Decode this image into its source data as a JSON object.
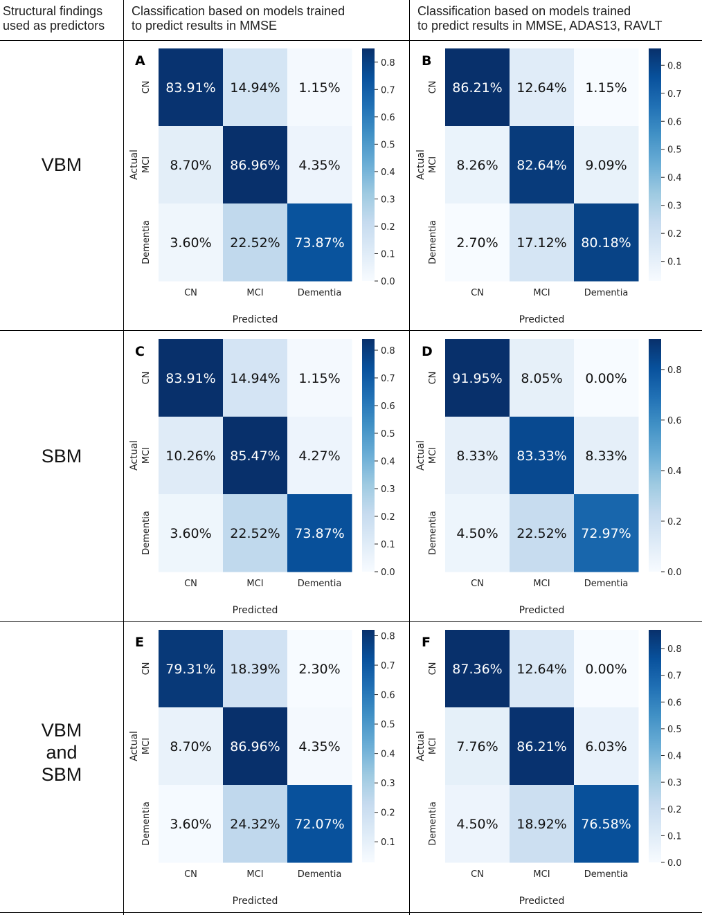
{
  "headers": {
    "col0": [
      "Structural findings",
      "used as predictors"
    ],
    "col1": [
      "Classification based on models trained",
      "to predict results in MMSE"
    ],
    "col2": [
      "Classification based on models trained",
      "to predict results in MMSE, ADAS13, RAVLT"
    ]
  },
  "rows": [
    {
      "label": [
        "VBM"
      ]
    },
    {
      "label": [
        "SBM"
      ]
    },
    {
      "label": [
        "VBM",
        "and",
        "SBM"
      ]
    }
  ],
  "colors": {
    "low": "#f7fbff",
    "high": "#08306b"
  },
  "chart_data": [
    {
      "panel": "A",
      "type": "heatmap",
      "xlabel": "Predicted",
      "ylabel": "Actual",
      "categories": [
        "CN",
        "MCI",
        "Dementia"
      ],
      "values": [
        [
          83.91,
          14.94,
          1.15
        ],
        [
          8.7,
          86.96,
          4.35
        ],
        [
          3.6,
          22.52,
          73.87
        ]
      ],
      "labels": [
        [
          "83.91%",
          "14.94%",
          "1.15%"
        ],
        [
          "8.70%",
          "86.96%",
          "4.35%"
        ],
        [
          "3.60%",
          "22.52%",
          "73.87%"
        ]
      ],
      "colorbar": {
        "min": 0.0,
        "max": 0.85,
        "ticks": [
          "0.8",
          "0.7",
          "0.6",
          "0.5",
          "0.4",
          "0.3",
          "0.2",
          "0.1",
          "0.0"
        ]
      }
    },
    {
      "panel": "B",
      "type": "heatmap",
      "xlabel": "Predicted",
      "ylabel": "Actual",
      "categories": [
        "CN",
        "MCI",
        "Dementia"
      ],
      "values": [
        [
          86.21,
          12.64,
          1.15
        ],
        [
          8.26,
          82.64,
          9.09
        ],
        [
          2.7,
          17.12,
          80.18
        ]
      ],
      "labels": [
        [
          "86.21%",
          "12.64%",
          "1.15%"
        ],
        [
          "8.26%",
          "82.64%",
          "9.09%"
        ],
        [
          "2.70%",
          "17.12%",
          "80.18%"
        ]
      ],
      "colorbar": {
        "min": 0.03,
        "max": 0.86,
        "ticks": [
          "0.8",
          "0.7",
          "0.6",
          "0.5",
          "0.4",
          "0.3",
          "0.2",
          "0.1"
        ]
      }
    },
    {
      "panel": "C",
      "type": "heatmap",
      "xlabel": "Predicted",
      "ylabel": "Actual",
      "categories": [
        "CN",
        "MCI",
        "Dementia"
      ],
      "values": [
        [
          83.91,
          14.94,
          1.15
        ],
        [
          10.26,
          85.47,
          4.27
        ],
        [
          3.6,
          22.52,
          73.87
        ]
      ],
      "labels": [
        [
          "83.91%",
          "14.94%",
          "1.15%"
        ],
        [
          "10.26%",
          "85.47%",
          "4.27%"
        ],
        [
          "3.60%",
          "22.52%",
          "73.87%"
        ]
      ],
      "colorbar": {
        "min": 0.0,
        "max": 0.84,
        "ticks": [
          "0.8",
          "0.7",
          "0.6",
          "0.5",
          "0.4",
          "0.3",
          "0.2",
          "0.1",
          "0.0"
        ]
      }
    },
    {
      "panel": "D",
      "type": "heatmap",
      "xlabel": "Predicted",
      "ylabel": "Actual",
      "categories": [
        "CN",
        "MCI",
        "Dementia"
      ],
      "values": [
        [
          91.95,
          8.05,
          0.0
        ],
        [
          8.33,
          83.33,
          8.33
        ],
        [
          4.5,
          22.52,
          72.97
        ]
      ],
      "labels": [
        [
          "91.95%",
          "8.05%",
          "0.00%"
        ],
        [
          "8.33%",
          "83.33%",
          "8.33%"
        ],
        [
          "4.50%",
          "22.52%",
          "72.97%"
        ]
      ],
      "colorbar": {
        "min": 0.0,
        "max": 0.92,
        "ticks": [
          "0.8",
          "0.6",
          "0.4",
          "0.2",
          "0.0"
        ]
      }
    },
    {
      "panel": "E",
      "type": "heatmap",
      "xlabel": "Predicted",
      "ylabel": "Actual",
      "categories": [
        "CN",
        "MCI",
        "Dementia"
      ],
      "values": [
        [
          79.31,
          18.39,
          2.3
        ],
        [
          8.7,
          86.96,
          4.35
        ],
        [
          3.6,
          24.32,
          72.07
        ]
      ],
      "labels": [
        [
          "79.31%",
          "18.39%",
          "2.30%"
        ],
        [
          "8.70%",
          "86.96%",
          "4.35%"
        ],
        [
          "3.60%",
          "24.32%",
          "72.07%"
        ]
      ],
      "colorbar": {
        "min": 0.03,
        "max": 0.82,
        "ticks": [
          "0.8",
          "0.7",
          "0.6",
          "0.5",
          "0.4",
          "0.3",
          "0.2",
          "0.1"
        ]
      }
    },
    {
      "panel": "F",
      "type": "heatmap",
      "xlabel": "Predicted",
      "ylabel": "Actual",
      "categories": [
        "CN",
        "MCI",
        "Dementia"
      ],
      "values": [
        [
          87.36,
          12.64,
          0.0
        ],
        [
          7.76,
          86.21,
          6.03
        ],
        [
          4.5,
          18.92,
          76.58
        ]
      ],
      "labels": [
        [
          "87.36%",
          "12.64%",
          "0.00%"
        ],
        [
          "7.76%",
          "86.21%",
          "6.03%"
        ],
        [
          "4.50%",
          "18.92%",
          "76.58%"
        ]
      ],
      "colorbar": {
        "min": 0.0,
        "max": 0.87,
        "ticks": [
          "0.8",
          "0.7",
          "0.6",
          "0.5",
          "0.4",
          "0.3",
          "0.2",
          "0.1",
          "0.0"
        ]
      }
    }
  ]
}
